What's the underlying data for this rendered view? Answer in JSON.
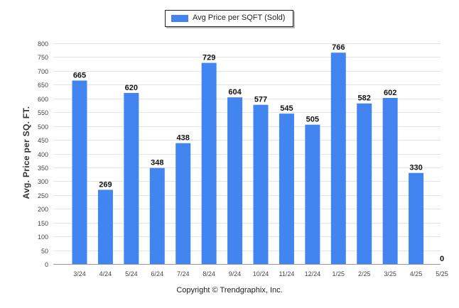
{
  "chart_data": {
    "type": "bar",
    "categories": [
      "3/24",
      "4/24",
      "5/24",
      "6/24",
      "7/24",
      "8/24",
      "9/24",
      "10/24",
      "11/24",
      "12/24",
      "1/25",
      "2/25",
      "3/25",
      "4/25",
      "5/25"
    ],
    "series": [
      {
        "name": "Avg Price per SQFT (Sold)",
        "values": [
          665,
          269,
          620,
          348,
          438,
          729,
          604,
          577,
          545,
          505,
          766,
          582,
          602,
          330,
          0
        ]
      }
    ],
    "ylabel": "Avg. Price per SQ. FT.",
    "xlabel": "",
    "ylim": [
      0,
      800
    ],
    "yticks": [
      0,
      50,
      100,
      150,
      200,
      250,
      300,
      350,
      400,
      450,
      500,
      550,
      600,
      650,
      700,
      750,
      800
    ],
    "grid": true,
    "legend_position": "top-center",
    "data_labels": true,
    "bar_color": "#4285f0"
  },
  "footer": {
    "copyright": "Copyright © Trendgraphix, Inc."
  }
}
